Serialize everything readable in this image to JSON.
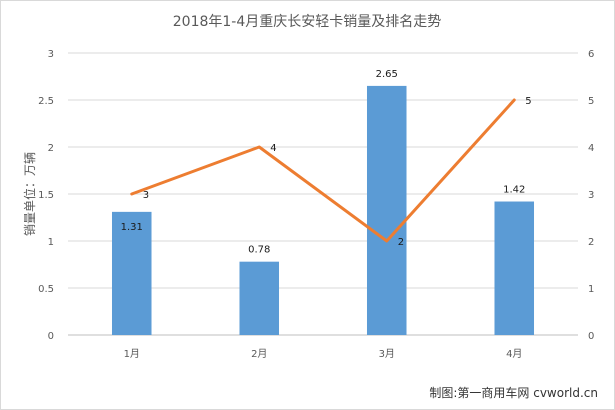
{
  "chart_data": {
    "type": "bar",
    "title": "2018年1-4月重庆长安轻卡销量及排名走势",
    "ylabel": "销量单位：万辆",
    "credit": "制图:第一商用车网 cvworld.cn",
    "categories": [
      "1月",
      "2月",
      "3月",
      "4月"
    ],
    "ylim": [
      0,
      3
    ],
    "yticks": [
      "0",
      "0.5",
      "1",
      "1.5",
      "2",
      "2.5",
      "3"
    ],
    "y2lim": [
      0,
      6
    ],
    "y2ticks": [
      "0",
      "1",
      "2",
      "3",
      "4",
      "5",
      "6"
    ],
    "grid": true,
    "series": [
      {
        "type": "bar",
        "axis": "left",
        "color": "#5b9bd5",
        "values": [
          1.31,
          0.78,
          2.65,
          1.42
        ],
        "labels": [
          "1.31",
          "0.78",
          "2.65",
          "1.42"
        ]
      },
      {
        "type": "line",
        "axis": "right",
        "color": "#ed7d31",
        "values": [
          3,
          4,
          2,
          5
        ],
        "labels": [
          "3",
          "4",
          "2",
          "5"
        ]
      }
    ]
  }
}
